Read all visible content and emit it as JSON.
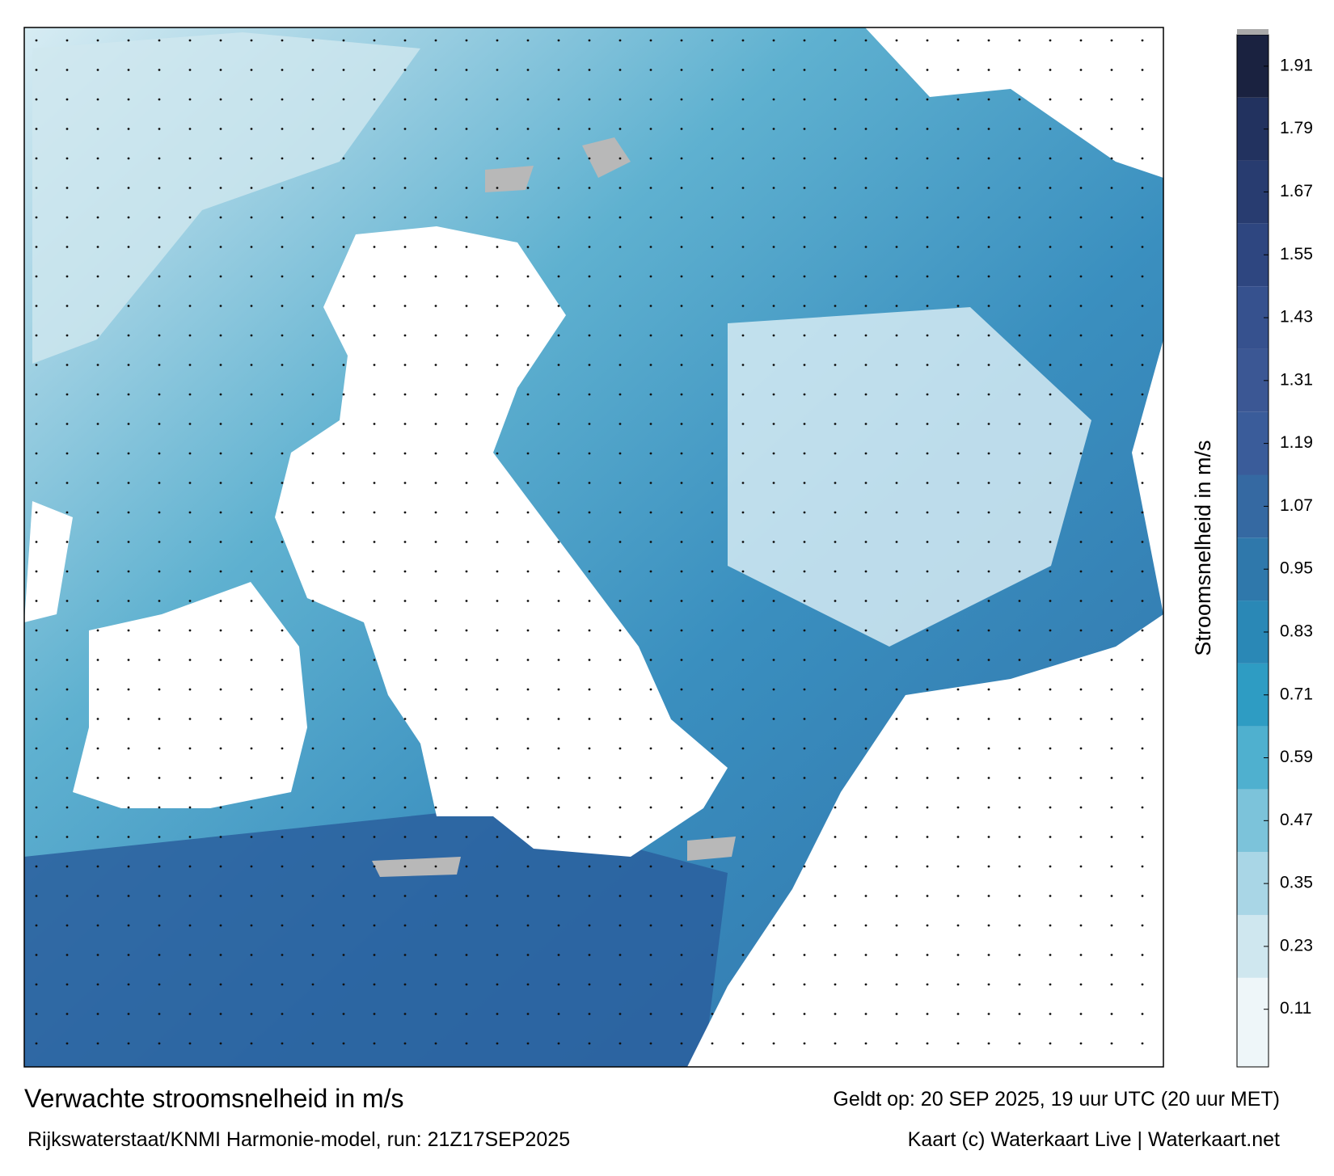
{
  "title": "Verwachte stroomsnelheid in m/s",
  "valid_time": "Geldt op: 20 SEP 2025, 19 uur UTC (20 uur MET)",
  "source": "Rijkswaterstaat/KNMI Harmonie-model, run: 21Z17SEP2025",
  "credit": "Kaart (c) Waterkaart Live | Waterkaart.net",
  "colorbar": {
    "label": "Stroomsnelheid in m/s",
    "lim": [
      0,
      1.97
    ],
    "ticks": [
      0.11,
      0.23,
      0.35,
      0.47,
      0.59,
      0.71,
      0.83,
      0.95,
      1.07,
      1.19,
      1.31,
      1.43,
      1.55,
      1.67,
      1.79,
      1.91
    ],
    "colors": [
      "#eef6f9",
      "#cfe7ef",
      "#a9d6e6",
      "#7cc3da",
      "#4fb0cf",
      "#2e9cc3",
      "#2a88b6",
      "#2f78ab",
      "#3569a2",
      "#3a5c9a",
      "#3b5794",
      "#36518e",
      "#2e4680",
      "#283c70",
      "#22325f",
      "#1a2240"
    ]
  }
}
